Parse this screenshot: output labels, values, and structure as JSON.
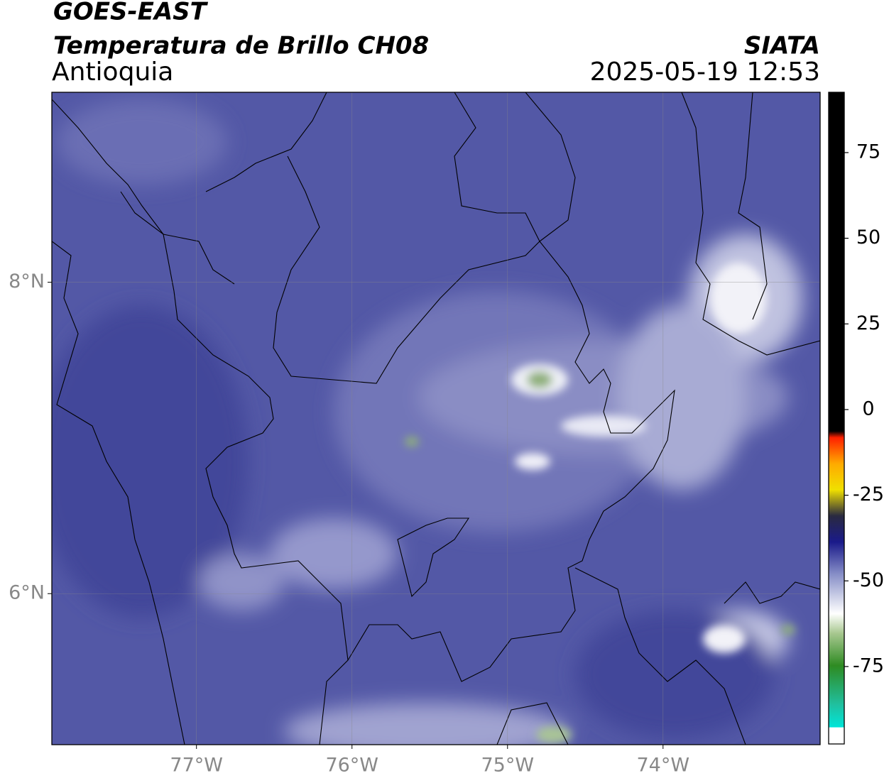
{
  "header": {
    "title": "GOES-EAST",
    "subtitle": "Temperatura de Brillo CH08",
    "region": "Antioquia",
    "source": "SIATA",
    "timestamp": "2025-05-19 12:53"
  },
  "map": {
    "xlim": [
      -77.93,
      -72.99
    ],
    "ylim": [
      5.03,
      9.22
    ],
    "xticks": [
      {
        "value": -77,
        "label": "77°W"
      },
      {
        "value": -76,
        "label": "76°W"
      },
      {
        "value": -75,
        "label": "75°W"
      },
      {
        "value": -74,
        "label": "74°W"
      }
    ],
    "yticks": [
      {
        "value": 6,
        "label": "6°N"
      },
      {
        "value": 8,
        "label": "8°N"
      }
    ],
    "grid": true
  },
  "colorbar": {
    "lim": [
      -97.6,
      92.6
    ],
    "ticks": [
      75,
      50,
      25,
      0,
      -25,
      -50,
      -75
    ]
  }
}
